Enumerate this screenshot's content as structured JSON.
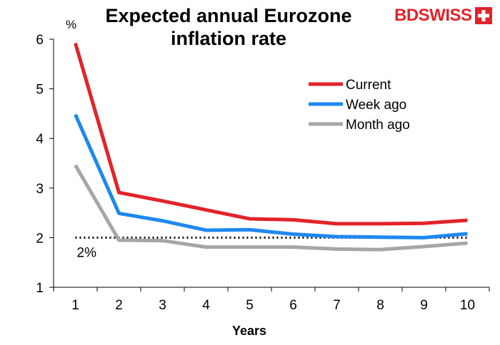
{
  "chart_data": {
    "type": "line",
    "title_line1": "Expected annual Eurozone",
    "title_line2": "inflation rate",
    "xlabel": "Years",
    "ylabel": "%",
    "x": [
      1,
      2,
      3,
      4,
      5,
      6,
      7,
      8,
      9,
      10
    ],
    "ylim": [
      1,
      6
    ],
    "yticks": [
      1,
      2,
      3,
      4,
      5,
      6
    ],
    "grid": false,
    "legend_position": "top-right",
    "series": [
      {
        "name": "Current",
        "color": "#e2232a",
        "values": [
          5.92,
          2.91,
          2.74,
          2.56,
          2.38,
          2.36,
          2.28,
          2.28,
          2.29,
          2.35
        ]
      },
      {
        "name": "Week ago",
        "color": "#1e88ee",
        "values": [
          4.48,
          2.49,
          2.34,
          2.15,
          2.16,
          2.07,
          2.02,
          2.01,
          2.0,
          2.08
        ]
      },
      {
        "name": "Month ago",
        "color": "#a6a6a6",
        "values": [
          3.46,
          1.95,
          1.94,
          1.81,
          1.81,
          1.81,
          1.77,
          1.76,
          1.82,
          1.89
        ]
      }
    ],
    "reference_line": {
      "value": 2,
      "label": "2%",
      "color": "#000000"
    }
  },
  "brand": {
    "part1": "BD",
    "part2": "SWISS"
  }
}
